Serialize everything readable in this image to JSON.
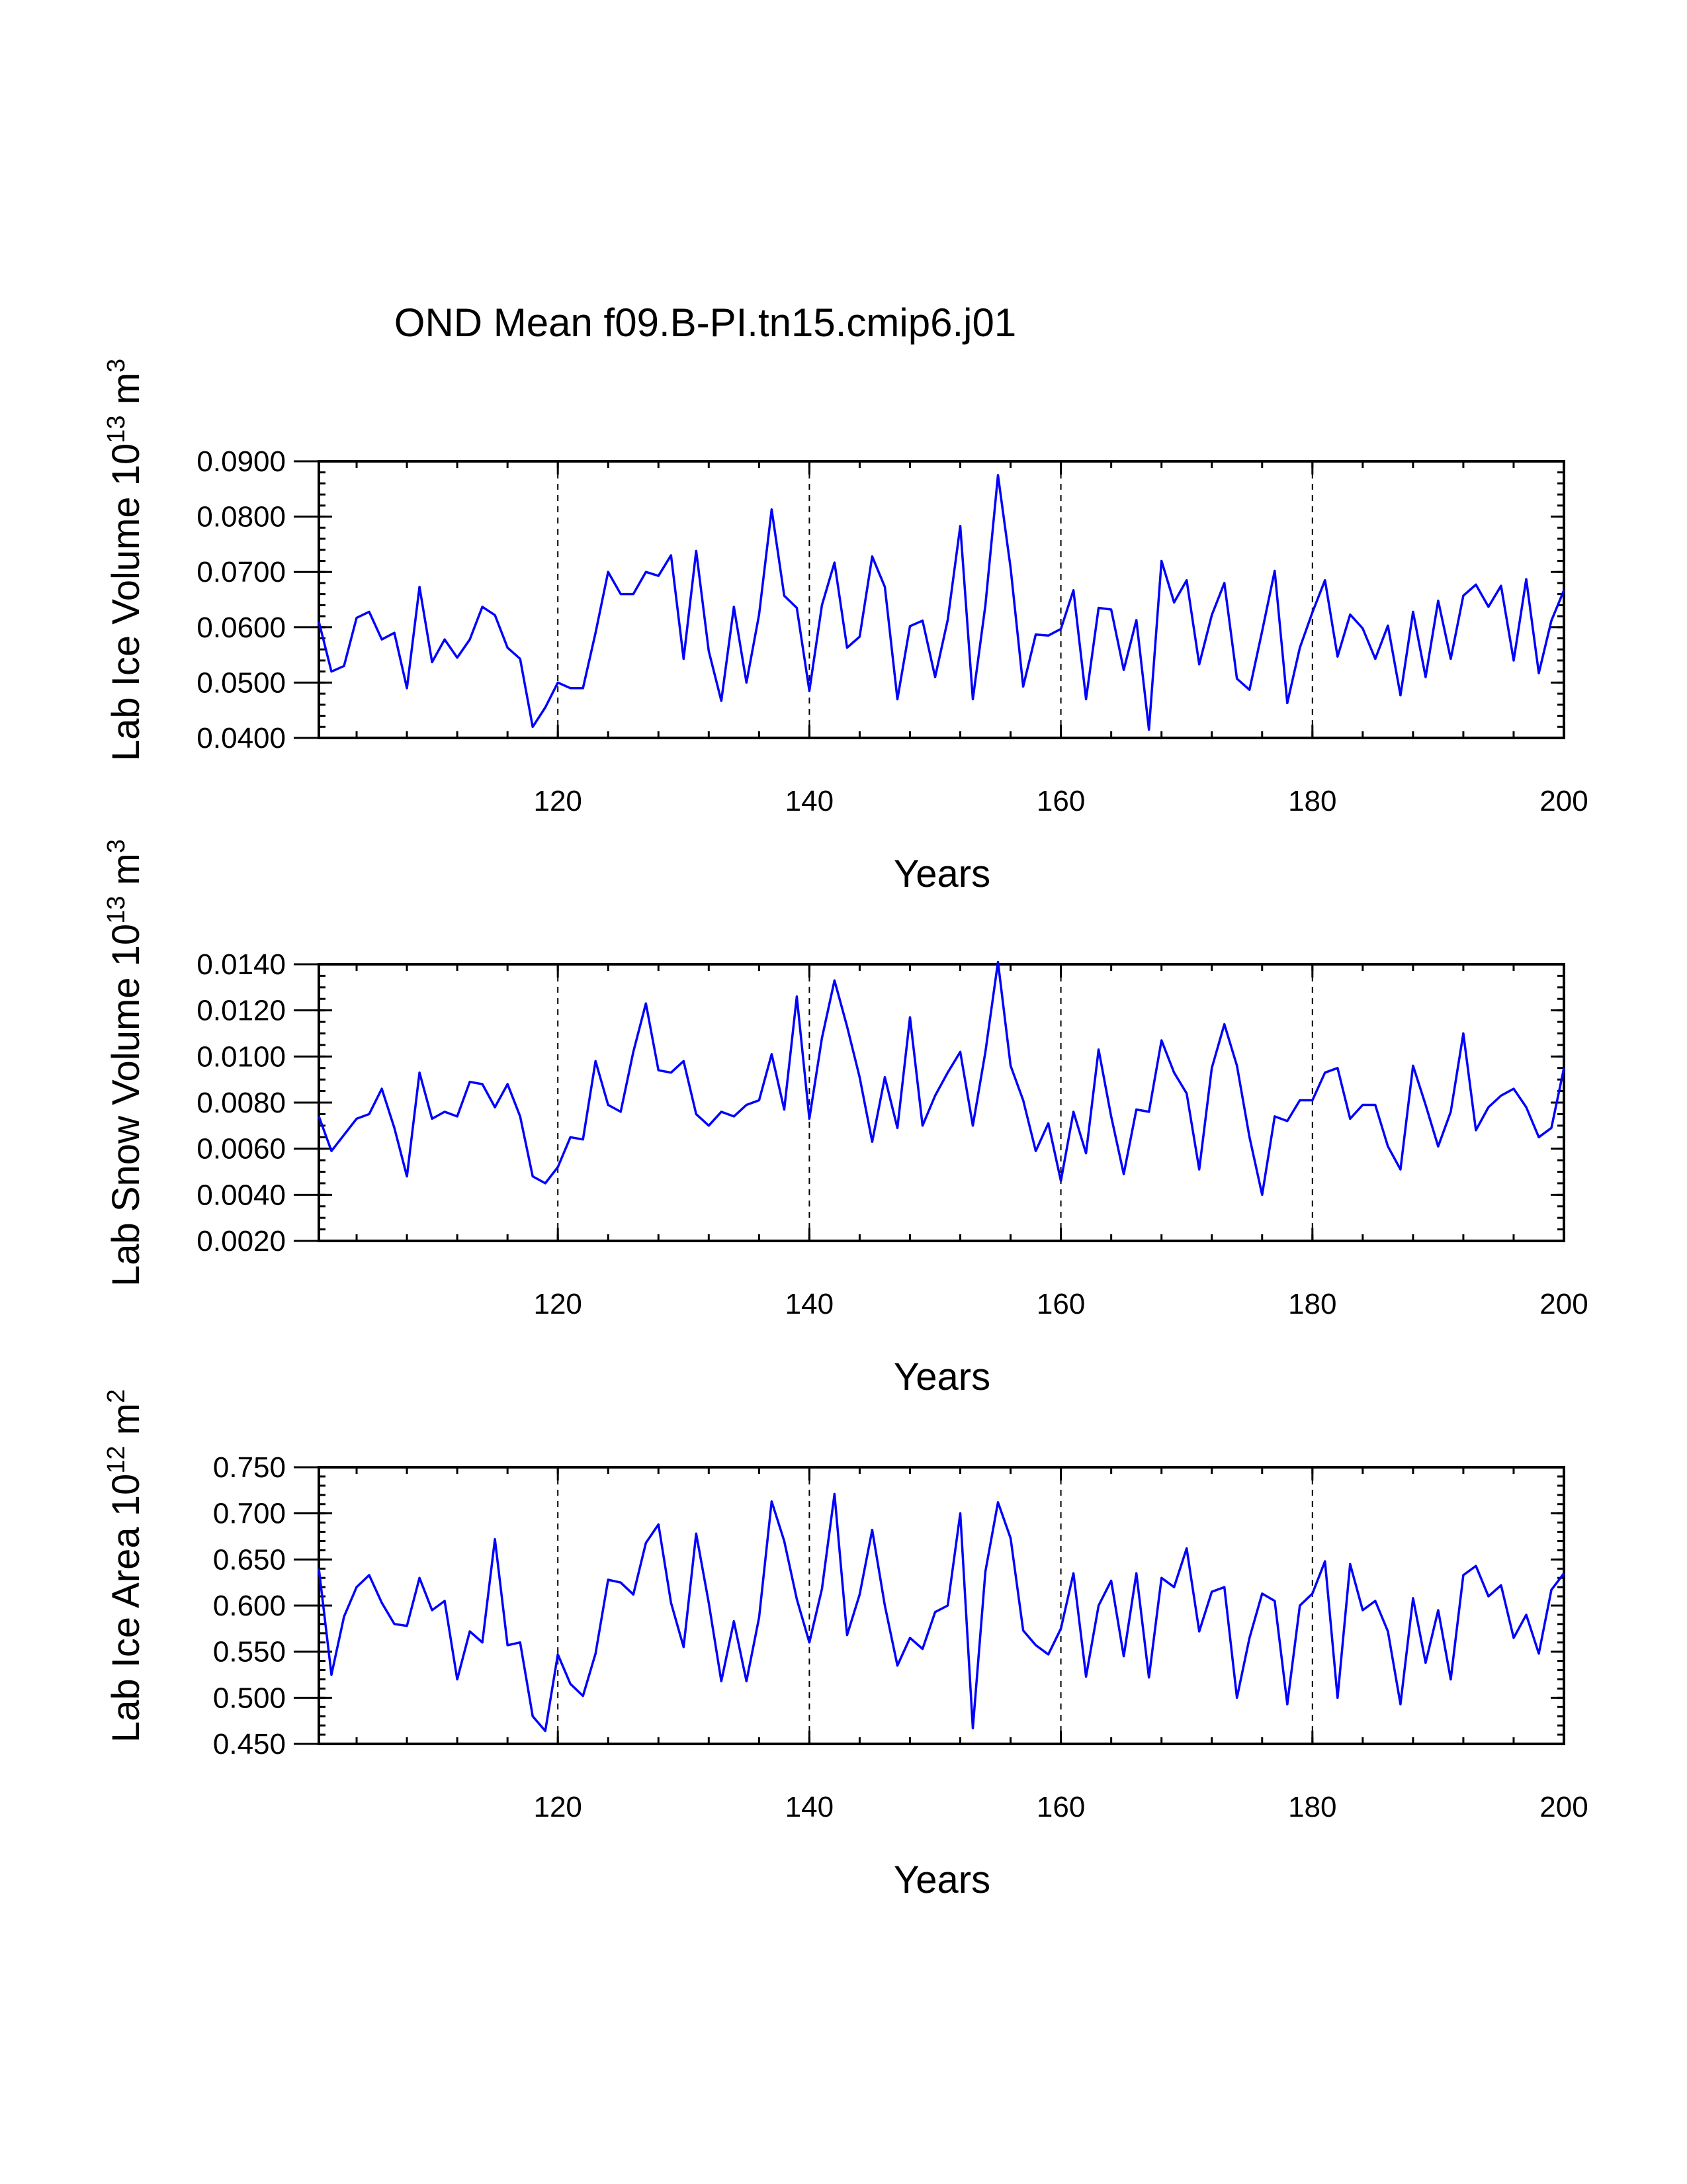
{
  "page_title": "OND Mean f09.B-PI.tn15.cmip6.j01",
  "chart_data": [
    {
      "type": "line",
      "title": "OND Mean f09.B-PI.tn15.cmip6.j01",
      "xlabel": "Years",
      "ylabel": "Lab Ice Volume 10",
      "ylabel_exp": "13",
      "ylabel_unit": " m",
      "ylabel_unit_exp": "3",
      "xlim": [
        101,
        200
      ],
      "ylim": [
        0.04,
        0.09
      ],
      "xticks": [
        120,
        140,
        160,
        180,
        200
      ],
      "yticks": [
        0.04,
        0.05,
        0.06,
        0.07,
        0.08,
        0.09
      ],
      "ytick_labels": [
        "0.0400",
        "0.0500",
        "0.0600",
        "0.0700",
        "0.0800",
        "0.0900"
      ],
      "yminor": 0.002,
      "xminor": 4,
      "vlines": [
        120,
        140,
        160,
        180
      ],
      "series": [
        {
          "name": "Lab Ice Volume",
          "color": "#0000ff",
          "x_start": 101,
          "values": [
            0.061,
            0.052,
            0.053,
            0.0617,
            0.0628,
            0.0578,
            0.059,
            0.049,
            0.0673,
            0.0537,
            0.0578,
            0.0545,
            0.0578,
            0.0637,
            0.0622,
            0.0563,
            0.0543,
            0.042,
            0.0455,
            0.05,
            0.049,
            0.049,
            0.059,
            0.07,
            0.066,
            0.066,
            0.07,
            0.0693,
            0.073,
            0.0543,
            0.0738,
            0.0557,
            0.0467,
            0.0637,
            0.05,
            0.0623,
            0.0813,
            0.0657,
            0.0635,
            0.0485,
            0.064,
            0.0717,
            0.0563,
            0.0583,
            0.0728,
            0.0673,
            0.047,
            0.0602,
            0.0612,
            0.051,
            0.0613,
            0.0783,
            0.047,
            0.064,
            0.0875,
            0.0707,
            0.0493,
            0.0587,
            0.0585,
            0.0597,
            0.0667,
            0.047,
            0.0635,
            0.0632,
            0.0523,
            0.0613,
            0.0415,
            0.072,
            0.0645,
            0.0685,
            0.0533,
            0.0622,
            0.068,
            0.0507,
            0.0487,
            0.0593,
            0.0702,
            0.0463,
            0.0563,
            0.0627,
            0.0685,
            0.0547,
            0.0623,
            0.0598,
            0.0543,
            0.0603,
            0.0477,
            0.0628,
            0.051,
            0.0648,
            0.0543,
            0.0657,
            0.0677,
            0.0637,
            0.0675,
            0.054,
            0.0687,
            0.0517,
            0.0612,
            0.0667
          ]
        }
      ]
    },
    {
      "type": "line",
      "title": "",
      "xlabel": "Years",
      "ylabel": "Lab Snow Volume 10",
      "ylabel_exp": "13",
      "ylabel_unit": " m",
      "ylabel_unit_exp": "3",
      "xlim": [
        101,
        200
      ],
      "ylim": [
        0.002,
        0.014
      ],
      "xticks": [
        120,
        140,
        160,
        180,
        200
      ],
      "yticks": [
        0.002,
        0.004,
        0.006,
        0.008,
        0.01,
        0.012,
        0.014
      ],
      "ytick_labels": [
        "0.0020",
        "0.0040",
        "0.0060",
        "0.0080",
        "0.0100",
        "0.0120",
        "0.0140"
      ],
      "yminor": 0.0005,
      "xminor": 4,
      "vlines": [
        120,
        140,
        160,
        180
      ],
      "series": [
        {
          "name": "Lab Snow Volume",
          "color": "#0000ff",
          "x_start": 101,
          "values": [
            0.0074,
            0.0059,
            0.0066,
            0.0073,
            0.0075,
            0.0086,
            0.0069,
            0.0048,
            0.0093,
            0.0073,
            0.0076,
            0.0074,
            0.0089,
            0.0088,
            0.0078,
            0.0088,
            0.0074,
            0.0048,
            0.0045,
            0.0052,
            0.0065,
            0.0064,
            0.0098,
            0.0079,
            0.0076,
            0.0102,
            0.0123,
            0.0094,
            0.0093,
            0.0098,
            0.0075,
            0.007,
            0.0076,
            0.0074,
            0.0079,
            0.0081,
            0.0101,
            0.0077,
            0.0126,
            0.0073,
            0.0108,
            0.0133,
            0.0113,
            0.0091,
            0.0063,
            0.0091,
            0.0069,
            0.0117,
            0.007,
            0.0083,
            0.0093,
            0.0102,
            0.007,
            0.0102,
            0.0141,
            0.0096,
            0.0081,
            0.0059,
            0.0071,
            0.0046,
            0.0076,
            0.0058,
            0.0103,
            0.0074,
            0.0049,
            0.0077,
            0.0076,
            0.0107,
            0.0093,
            0.0084,
            0.0051,
            0.0095,
            0.0114,
            0.0096,
            0.0065,
            0.004,
            0.0074,
            0.0072,
            0.0081,
            0.0081,
            0.0093,
            0.0095,
            0.0073,
            0.0079,
            0.0079,
            0.0061,
            0.0051,
            0.0096,
            0.0079,
            0.0061,
            0.0076,
            0.011,
            0.0068,
            0.0078,
            0.0083,
            0.0086,
            0.0078,
            0.0065,
            0.0069,
            0.0095
          ]
        }
      ]
    },
    {
      "type": "line",
      "title": "",
      "xlabel": "Years",
      "ylabel": "Lab Ice Area 10",
      "ylabel_exp": "12",
      "ylabel_unit": " m",
      "ylabel_unit_exp": "2",
      "xlim": [
        101,
        200
      ],
      "ylim": [
        0.45,
        0.75
      ],
      "xticks": [
        120,
        140,
        160,
        180,
        200
      ],
      "yticks": [
        0.45,
        0.5,
        0.55,
        0.6,
        0.65,
        0.7,
        0.75
      ],
      "ytick_labels": [
        "0.450",
        "0.500",
        "0.550",
        "0.600",
        "0.650",
        "0.700",
        "0.750"
      ],
      "yminor": 0.01,
      "xminor": 4,
      "vlines": [
        120,
        140,
        160,
        180
      ],
      "series": [
        {
          "name": "Lab Ice Area",
          "color": "#0000ff",
          "x_start": 101,
          "values": [
            0.64,
            0.525,
            0.588,
            0.62,
            0.633,
            0.603,
            0.58,
            0.578,
            0.63,
            0.595,
            0.605,
            0.52,
            0.572,
            0.56,
            0.672,
            0.557,
            0.56,
            0.48,
            0.464,
            0.547,
            0.515,
            0.502,
            0.548,
            0.628,
            0.625,
            0.612,
            0.668,
            0.688,
            0.603,
            0.555,
            0.678,
            0.603,
            0.518,
            0.583,
            0.518,
            0.587,
            0.713,
            0.67,
            0.607,
            0.56,
            0.618,
            0.721,
            0.568,
            0.612,
            0.682,
            0.6,
            0.535,
            0.565,
            0.553,
            0.593,
            0.6,
            0.7,
            0.467,
            0.637,
            0.712,
            0.673,
            0.573,
            0.557,
            0.547,
            0.575,
            0.635,
            0.523,
            0.6,
            0.627,
            0.545,
            0.635,
            0.522,
            0.63,
            0.62,
            0.662,
            0.572,
            0.615,
            0.62,
            0.5,
            0.565,
            0.613,
            0.605,
            0.493,
            0.6,
            0.613,
            0.648,
            0.5,
            0.645,
            0.595,
            0.605,
            0.572,
            0.493,
            0.608,
            0.538,
            0.595,
            0.52,
            0.633,
            0.643,
            0.61,
            0.622,
            0.565,
            0.59,
            0.548,
            0.617,
            0.635
          ]
        }
      ]
    }
  ]
}
